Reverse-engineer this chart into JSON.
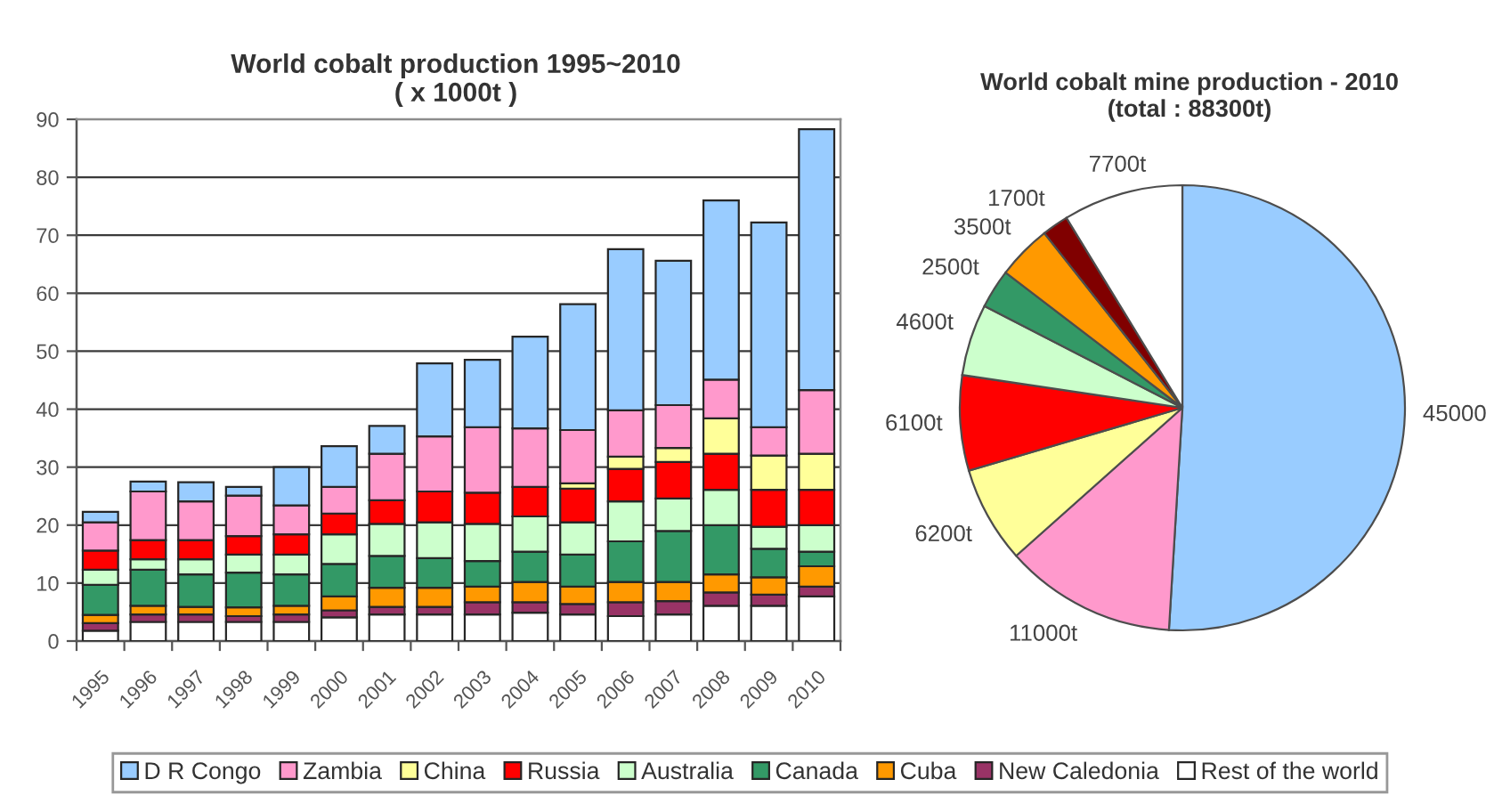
{
  "chart_data": [
    {
      "type": "bar",
      "stacked": true,
      "title": "World cobalt production 1995~2010",
      "subtitle": "( x 1000t )",
      "categories": [
        "1995",
        "1996",
        "1997",
        "1998",
        "1999",
        "2000",
        "2001",
        "2002",
        "2003",
        "2004",
        "2005",
        "2006",
        "2007",
        "2008",
        "2009",
        "2010"
      ],
      "series": [
        {
          "name": "Rest of the world",
          "color": "#ffffff",
          "values": [
            1.8,
            3.3,
            3.3,
            3.3,
            3.3,
            4.1,
            4.6,
            4.6,
            4.6,
            4.9,
            4.6,
            4.3,
            4.6,
            6.1,
            6.1,
            7.7
          ]
        },
        {
          "name": "New Caledonia",
          "color": "#993366",
          "values": [
            1.3,
            1.3,
            1.3,
            1.0,
            1.3,
            1.2,
            1.3,
            1.3,
            2.1,
            1.8,
            1.8,
            2.4,
            2.3,
            2.3,
            1.9,
            1.7
          ]
        },
        {
          "name": "Cuba",
          "color": "#ff9900",
          "values": [
            1.4,
            1.5,
            1.3,
            1.5,
            1.5,
            2.4,
            3.3,
            3.3,
            2.7,
            3.5,
            3.0,
            3.5,
            3.3,
            3.1,
            3.0,
            3.5
          ]
        },
        {
          "name": "Canada",
          "color": "#339966",
          "values": [
            5.2,
            6.2,
            5.6,
            6.0,
            5.4,
            5.6,
            5.5,
            5.1,
            4.4,
            5.2,
            5.5,
            7.0,
            8.8,
            8.5,
            4.9,
            2.5
          ]
        },
        {
          "name": "Australia",
          "color": "#ccffcc",
          "values": [
            2.6,
            1.8,
            2.6,
            3.1,
            3.4,
            5.1,
            5.5,
            6.2,
            6.4,
            6.1,
            5.6,
            6.9,
            5.6,
            6.1,
            3.8,
            4.6
          ]
        },
        {
          "name": "Russia",
          "color": "#ff0000",
          "values": [
            3.3,
            3.3,
            3.3,
            3.2,
            3.5,
            3.6,
            4.1,
            5.3,
            5.4,
            5.1,
            5.8,
            5.6,
            6.3,
            6.2,
            6.4,
            6.1
          ]
        },
        {
          "name": "China",
          "color": "#ffff99",
          "values": [
            null,
            null,
            null,
            null,
            null,
            null,
            null,
            null,
            null,
            null,
            0.9,
            2.1,
            2.4,
            6.1,
            5.9,
            6.2
          ]
        },
        {
          "name": "Zambia",
          "color": "#ff99cc",
          "values": [
            4.9,
            8.4,
            6.7,
            7.0,
            5.0,
            4.6,
            8.0,
            9.5,
            11.3,
            10.1,
            9.2,
            8.0,
            7.4,
            6.7,
            4.9,
            11
          ]
        },
        {
          "name": "D R Congo",
          "color": "#99ccff",
          "values": [
            1.8,
            1.7,
            3.3,
            1.5,
            6.6,
            7.0,
            4.8,
            12.6,
            11.6,
            15.8,
            21.7,
            27.8,
            24.9,
            30.9,
            35.3,
            45
          ]
        }
      ],
      "ylim": [
        0,
        90
      ],
      "yticks": [
        0,
        10,
        20,
        30,
        40,
        50,
        60,
        70,
        80,
        90
      ],
      "grid": "y",
      "legend": "bottom"
    },
    {
      "type": "pie",
      "title": "World cobalt mine production - 2010",
      "subtitle": "(total : 88300t)",
      "categories": [
        null,
        null,
        null,
        null,
        null,
        null,
        null,
        null,
        null
      ],
      "values": [
        45000,
        11000,
        6200,
        6100,
        4600,
        2500,
        3500,
        1700,
        7700
      ],
      "colors": [
        "#99ccff",
        "#ff99cc",
        "#ffff99",
        "#ff0000",
        "#ccffcc",
        "#339966",
        "#ff9900",
        "#800000",
        "#ffffff"
      ],
      "value_labels": [
        "45000",
        "11000t",
        "6200t",
        "6100t",
        "4600t",
        "2500t",
        "3500t",
        "1700t",
        "7700t"
      ]
    }
  ]
}
